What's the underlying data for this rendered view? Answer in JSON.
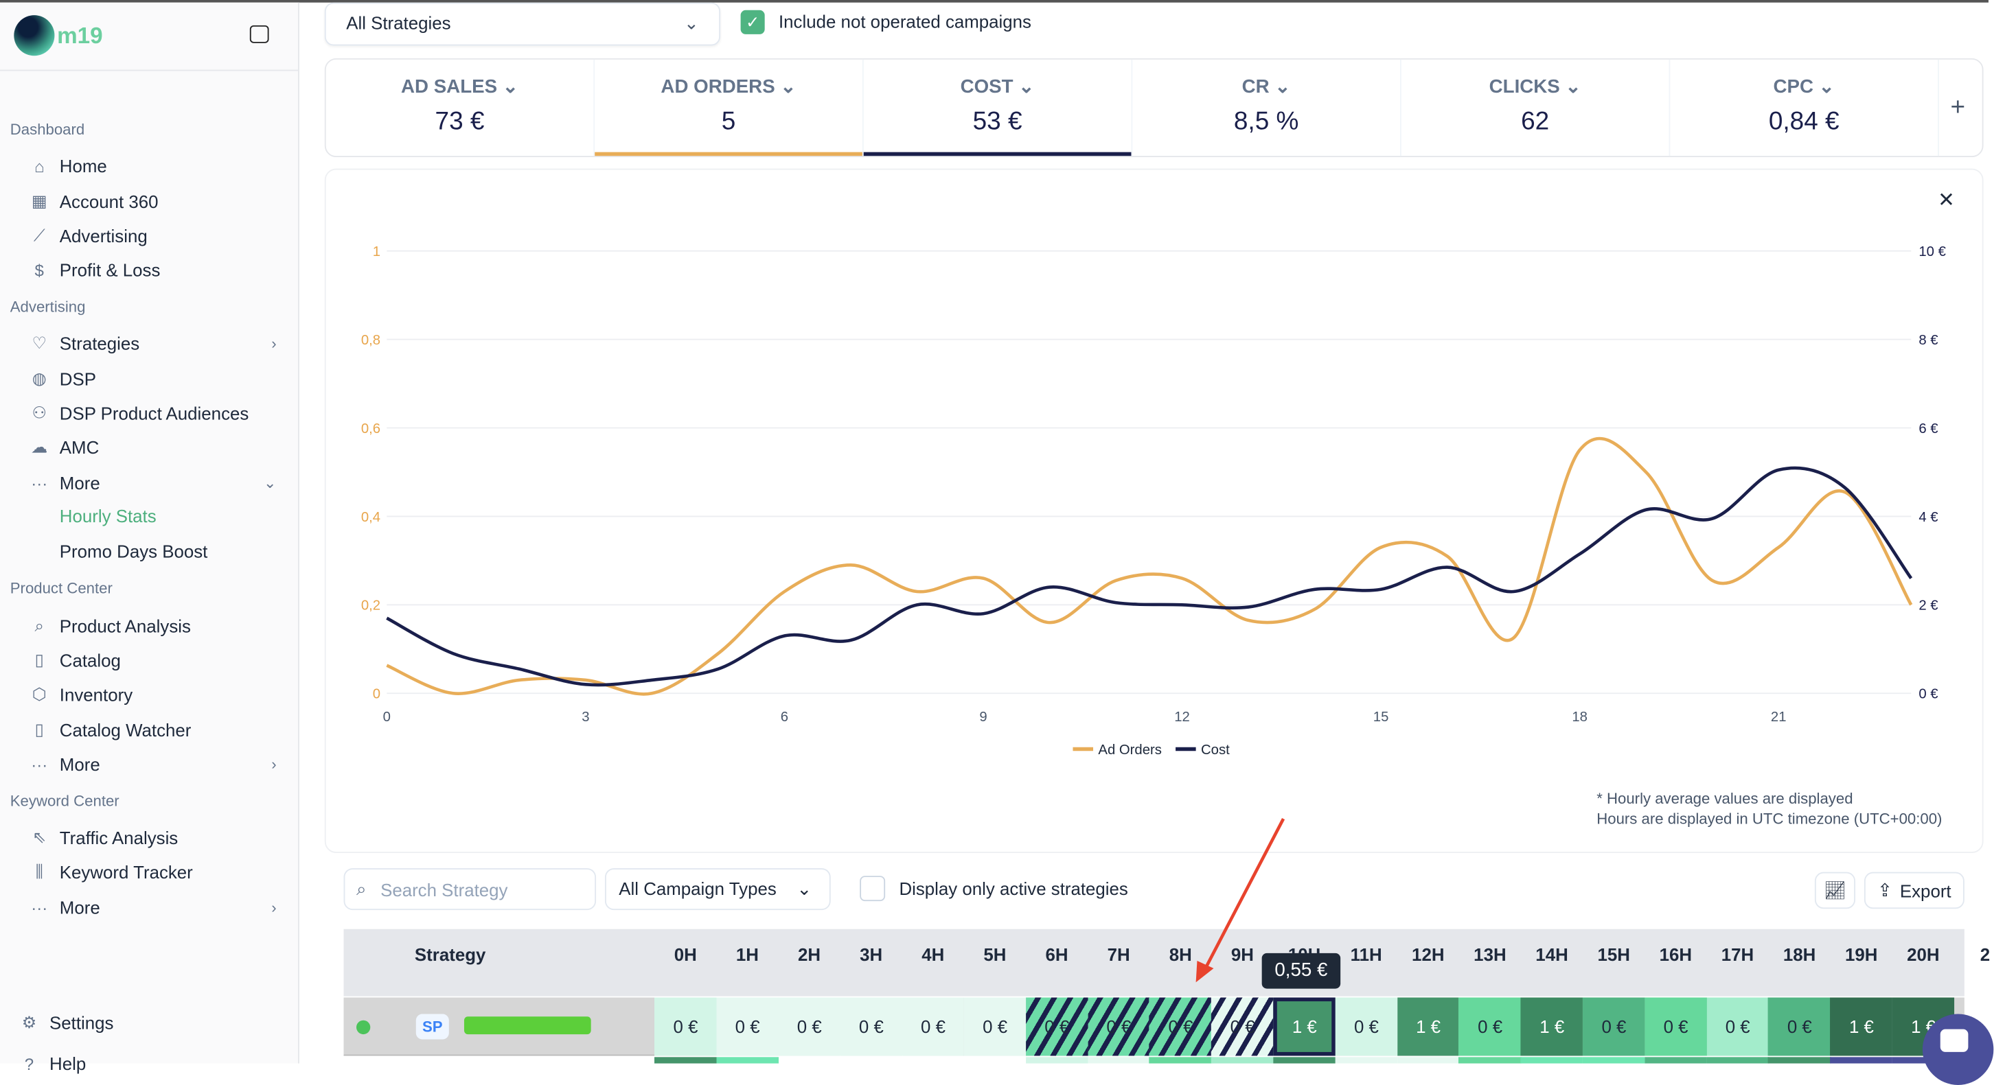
{
  "sidebar": {
    "brand": "m19",
    "sections": [
      {
        "title": "Dashboard",
        "items": [
          {
            "label": "Home",
            "icon": "home-icon"
          },
          {
            "label": "Account 360",
            "icon": "grid-icon"
          },
          {
            "label": "Advertising",
            "icon": "chart-line-icon"
          },
          {
            "label": "Profit & Loss",
            "icon": "dollar-icon"
          }
        ]
      },
      {
        "title": "Advertising",
        "items": [
          {
            "label": "Strategies",
            "icon": "lightbulb-icon"
          },
          {
            "label": "DSP",
            "icon": "globe-icon"
          },
          {
            "label": "DSP Product Audiences",
            "icon": "users-icon"
          },
          {
            "label": "AMC",
            "icon": "cloud-icon"
          },
          {
            "label": "More",
            "icon": "more-icon"
          }
        ],
        "subitems": [
          {
            "label": "Hourly Stats"
          },
          {
            "label": "Promo Days Boost"
          }
        ]
      },
      {
        "title": "Product Center",
        "items": [
          {
            "label": "Product Analysis",
            "icon": "search-icon"
          },
          {
            "label": "Catalog",
            "icon": "book-icon"
          },
          {
            "label": "Inventory",
            "icon": "box-icon"
          },
          {
            "label": "Catalog Watcher",
            "icon": "book-icon"
          },
          {
            "label": "More",
            "icon": "more-icon"
          }
        ]
      },
      {
        "title": "Keyword Center",
        "items": [
          {
            "label": "Traffic Analysis",
            "icon": "cursor-icon"
          },
          {
            "label": "Keyword Tracker",
            "icon": "bar-chart-icon"
          },
          {
            "label": "More",
            "icon": "more-icon"
          }
        ]
      }
    ],
    "settings": "Settings",
    "help": "Help"
  },
  "filters": {
    "strategy": "All Strategies",
    "include_not_operated": "Include not operated campaigns",
    "include_checked": true
  },
  "kpis": [
    {
      "label": "AD SALES",
      "value": "73 €"
    },
    {
      "label": "AD ORDERS",
      "value": "5",
      "color": "#e8ad58"
    },
    {
      "label": "COST",
      "value": "53 €",
      "color": "#1a1f4b"
    },
    {
      "label": "CR",
      "value": "8,5 %"
    },
    {
      "label": "CLICKS",
      "value": "62"
    },
    {
      "label": "CPC",
      "value": "0,84 €"
    }
  ],
  "chart_data": {
    "type": "line",
    "x": [
      0,
      1,
      2,
      3,
      4,
      5,
      6,
      7,
      8,
      9,
      10,
      11,
      12,
      13,
      14,
      15,
      16,
      17,
      18,
      19,
      20,
      21,
      22,
      23
    ],
    "xticks": [
      "0",
      "3",
      "6",
      "9",
      "12",
      "15",
      "18",
      "21"
    ],
    "yticks_left": [
      "0",
      "0,2",
      "0,4",
      "0,6",
      "0,8",
      "1"
    ],
    "yticks_right": [
      "0 €",
      "2 €",
      "4 €",
      "6 €",
      "8 €",
      "10 €"
    ],
    "ylim_left": [
      0,
      1
    ],
    "ylim_right": [
      0,
      10
    ],
    "grid": true,
    "legend": "bottom",
    "series": [
      {
        "name": "Ad Orders",
        "axis": "left",
        "color": "#e8ad58",
        "values": [
          0.063,
          0,
          0.03,
          0.03,
          0,
          0.09,
          0.23,
          0.29,
          0.23,
          0.26,
          0.16,
          0.255,
          0.26,
          0.165,
          0.19,
          0.33,
          0.31,
          0.125,
          0.55,
          0.5,
          0.255,
          0.33,
          0.455,
          0.2
        ]
      },
      {
        "name": "Cost",
        "axis": "right",
        "color": "#1a1f4b",
        "values": [
          1.7,
          0.9,
          0.55,
          0.2,
          0.3,
          0.55,
          1.3,
          1.2,
          2.0,
          1.8,
          2.4,
          2.05,
          2.0,
          1.95,
          2.35,
          2.35,
          2.85,
          2.3,
          3.15,
          4.15,
          3.95,
          5.05,
          4.65,
          2.6
        ]
      }
    ]
  },
  "notes": [
    "* Hourly average values are displayed",
    "Hours are displayed in UTC timezone (UTC+00:00)"
  ],
  "table": {
    "search_placeholder": "Search Strategy",
    "campaign_types": "All Campaign Types",
    "active_only": "Display only active strategies",
    "export": "Export",
    "strategy_header": "Strategy",
    "hours": [
      "0H",
      "1H",
      "2H",
      "3H",
      "4H",
      "5H",
      "6H",
      "7H",
      "8H",
      "9H",
      "10H",
      "11H",
      "12H",
      "13H",
      "14H",
      "15H",
      "16H",
      "17H",
      "18H",
      "19H",
      "20H",
      "2"
    ],
    "tooltip": "0,55 €",
    "rows": [
      {
        "type": "SP",
        "status": "active",
        "cells": [
          {
            "v": "0 €",
            "c": "#d3f5e7"
          },
          {
            "v": "0 €",
            "c": "#e6f8f1"
          },
          {
            "v": "0 €",
            "c": "#e6f8f1"
          },
          {
            "v": "0 €",
            "c": "#e6f8f1"
          },
          {
            "v": "0 €",
            "c": "#e6f8f1"
          },
          {
            "v": "0 €",
            "c": "#e6f8f1"
          },
          {
            "v": "0 €",
            "c": "#6ddca8",
            "hatched": true
          },
          {
            "v": "0 €",
            "c": "#6ddca8",
            "hatched": true
          },
          {
            "v": "0 €",
            "c": "#6ddca8",
            "hatched": true
          },
          {
            "v": "0 €",
            "c": "#e6f8f1",
            "hatched": true
          },
          {
            "v": "1 €",
            "c": "#45956b",
            "selected": true
          },
          {
            "v": "0 €",
            "c": "#d3f5e7"
          },
          {
            "v": "1 €",
            "c": "#45956b"
          },
          {
            "v": "0 €",
            "c": "#66d89c"
          },
          {
            "v": "1 €",
            "c": "#3d8a62"
          },
          {
            "v": "0 €",
            "c": "#52b584"
          },
          {
            "v": "0 €",
            "c": "#66d89c"
          },
          {
            "v": "0 €",
            "c": "#a3eccb"
          },
          {
            "v": "0 €",
            "c": "#52b584"
          },
          {
            "v": "1 €",
            "c": "#336e50"
          },
          {
            "v": "1 €",
            "c": "#336e50"
          }
        ]
      }
    ]
  }
}
